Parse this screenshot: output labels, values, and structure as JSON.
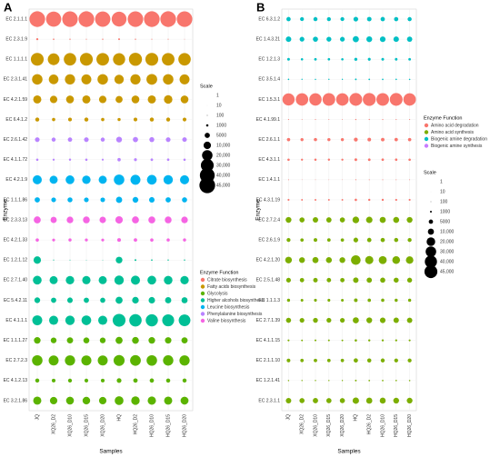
{
  "chart_data": [
    {
      "type": "dotplot",
      "panel": "A",
      "x_label": "Samples",
      "y_label": "Enzyme",
      "categories": [
        "JQ",
        "XQ26_D2",
        "XQ26_D10",
        "XQ26_D15",
        "XQ26_D20",
        "HQ",
        "HQ26_D2",
        "HQ26_D10",
        "HQ26_D15",
        "HQ26_D20"
      ],
      "legend_title": "Enzyme Function",
      "groups": [
        {
          "name": "Citrate biosynthesis",
          "color": "#F8766D"
        },
        {
          "name": "Fatty acids biosynthesis",
          "color": "#C99800"
        },
        {
          "name": "Glycolysis",
          "color": "#5BB300"
        },
        {
          "name": "Higher alcohols biosynthesis",
          "color": "#00BF96"
        },
        {
          "name": "Leucine biosynthesis",
          "color": "#00B4F0"
        },
        {
          "name": "Phenylalanine biosynthesis",
          "color": "#B983FF"
        },
        {
          "name": "Valine biosynthesis",
          "color": "#F564E3"
        }
      ],
      "size_title": "Scale",
      "size_ticks": [
        1,
        10,
        100,
        1000,
        5000,
        {
          "value": 10000,
          "label": "10,000"
        },
        {
          "value": 20000,
          "label": "20,000"
        },
        {
          "value": 30000,
          "label": "30,000"
        },
        {
          "value": 40000,
          "label": "40,000"
        },
        {
          "value": 45000,
          "label": "45,000"
        }
      ],
      "series": [
        {
          "name": "EC 2.1.1.1",
          "color": "#F8766D",
          "values": [
            45000,
            42000,
            44000,
            45000,
            43000,
            40000,
            44000,
            45000,
            45000,
            44000
          ]
        },
        {
          "name": "EC 2.3.1.9",
          "color": "#F8766D",
          "values": [
            800,
            400,
            300,
            200,
            300,
            600,
            300,
            200,
            200,
            100
          ]
        },
        {
          "name": "EC 1.1.1.1",
          "color": "#C99800",
          "values": [
            30000,
            25000,
            28000,
            30000,
            29000,
            27000,
            31000,
            30000,
            29000,
            28000
          ]
        },
        {
          "name": "EC 2.3.1.41",
          "color": "#C99800",
          "values": [
            20000,
            17000,
            19000,
            18000,
            20000,
            16000,
            19000,
            21000,
            20000,
            18000
          ]
        },
        {
          "name": "EC 4.2.1.59",
          "color": "#C99800",
          "values": [
            12000,
            10000,
            11000,
            12000,
            10000,
            9000,
            11000,
            12000,
            13000,
            11000
          ]
        },
        {
          "name": "EC 6.4.1.2",
          "color": "#C99800",
          "values": [
            3000,
            2000,
            2500,
            3000,
            2000,
            1800,
            2500,
            3000,
            2800,
            2600
          ]
        },
        {
          "name": "EC 2.6.1.42",
          "color": "#B983FF",
          "values": [
            4000,
            3000,
            3500,
            4000,
            3000,
            6000,
            5000,
            4500,
            4000,
            3800
          ]
        },
        {
          "name": "EC 4.1.1.72",
          "color": "#B983FF",
          "values": [
            1000,
            800,
            900,
            1000,
            700,
            2000,
            1500,
            1200,
            1100,
            1000
          ]
        },
        {
          "name": "EC 4.2.1.9",
          "color": "#00B4F0",
          "values": [
            15000,
            12000,
            14000,
            13000,
            12000,
            20000,
            18000,
            17000,
            16000,
            15000
          ]
        },
        {
          "name": "EC 1.1.1.86",
          "color": "#00B4F0",
          "values": [
            5000,
            4000,
            4500,
            4000,
            3800,
            7000,
            6000,
            5500,
            5000,
            4800
          ]
        },
        {
          "name": "EC 2.3.3.13",
          "color": "#F564E3",
          "values": [
            9000,
            7000,
            8000,
            8500,
            7500,
            10000,
            9000,
            8800,
            8500,
            8000
          ]
        },
        {
          "name": "EC 4.2.1.33",
          "color": "#F564E3",
          "values": [
            2000,
            1500,
            1800,
            1600,
            1500,
            2500,
            2200,
            2000,
            1900,
            1800
          ]
        },
        {
          "name": "EC 1.2.1.12",
          "color": "#00BF96",
          "values": [
            10000,
            200,
            150,
            100,
            100,
            8000,
            600,
            400,
            300,
            300
          ]
        },
        {
          "name": "EC 2.7.1.40",
          "color": "#00BF96",
          "values": [
            14000,
            12000,
            13000,
            12500,
            12000,
            16000,
            15000,
            14000,
            13500,
            13000
          ]
        },
        {
          "name": "EC 5.4.2.11",
          "color": "#00BF96",
          "values": [
            6000,
            5000,
            5500,
            5000,
            4800,
            9000,
            8000,
            7500,
            7000,
            6800
          ]
        },
        {
          "name": "EC 4.1.1.1",
          "color": "#00BF96",
          "values": [
            18000,
            15000,
            16000,
            17000,
            15000,
            30000,
            28000,
            27000,
            26000,
            25000
          ]
        },
        {
          "name": "EC 1.1.1.27",
          "color": "#5BB300",
          "values": [
            8000,
            6000,
            7000,
            6500,
            6000,
            9000,
            8500,
            8000,
            7500,
            7000
          ]
        },
        {
          "name": "EC 2.7.2.3",
          "color": "#5BB300",
          "values": [
            20000,
            18000,
            19000,
            18500,
            18000,
            22000,
            21000,
            20000,
            19500,
            19000
          ]
        },
        {
          "name": "EC 4.1.2.13",
          "color": "#5BB300",
          "values": [
            3000,
            2500,
            2800,
            2600,
            2500,
            4000,
            3500,
            3300,
            3100,
            3000
          ]
        },
        {
          "name": "EC 3.2.1.86",
          "color": "#5BB300",
          "values": [
            12000,
            10000,
            11000,
            10500,
            10000,
            14000,
            13000,
            12500,
            12000,
            11500
          ]
        }
      ]
    },
    {
      "type": "dotplot",
      "panel": "B",
      "x_label": "Samples",
      "y_label": "Enzyme",
      "categories": [
        "JQ",
        "XQ26_D2",
        "XQ26_D10",
        "XQ26_D15",
        "XQ26_D20",
        "HQ",
        "HQ26_D2",
        "HQ26_D10",
        "HQ26_D15",
        "HQ26_D20"
      ],
      "legend_title": "Enzyme Function",
      "groups": [
        {
          "name": "Amino acid degradation",
          "color": "#F8766D"
        },
        {
          "name": "Amino acid synthesis",
          "color": "#7CAE00"
        },
        {
          "name": "Biogenic amine degradation",
          "color": "#00BFC4"
        },
        {
          "name": "Biogenic amine synthesis",
          "color": "#C77CFF"
        }
      ],
      "size_title": "Scale",
      "size_ticks": [
        1,
        10,
        100,
        1000,
        5000,
        {
          "value": 10000,
          "label": "10,000"
        },
        {
          "value": 20000,
          "label": "20,000"
        },
        {
          "value": 30000,
          "label": "30,000"
        },
        {
          "value": 40000,
          "label": "40,000"
        },
        {
          "value": 45000,
          "label": "45,000"
        }
      ],
      "series": [
        {
          "name": "EC 6.3.1.2",
          "color": "#00BFC4",
          "values": [
            5000,
            4000,
            4500,
            4200,
            4000,
            6000,
            5500,
            5000,
            4800,
            4600
          ]
        },
        {
          "name": "EC 1.4.3.21",
          "color": "#00BFC4",
          "values": [
            8000,
            6000,
            7000,
            6500,
            6000,
            10000,
            9000,
            8500,
            8000,
            7500
          ]
        },
        {
          "name": "EC 1.2.1.3",
          "color": "#00BFC4",
          "values": [
            2000,
            1500,
            1800,
            1600,
            1500,
            2500,
            2200,
            2000,
            1900,
            1800
          ]
        },
        {
          "name": "EC 3.5.1.4",
          "color": "#00BFC4",
          "values": [
            600,
            400,
            500,
            450,
            400,
            800,
            700,
            650,
            600,
            550
          ]
        },
        {
          "name": "EC 1.5.3.1",
          "color": "#F8766D",
          "values": [
            40000,
            42000,
            41000,
            43000,
            42000,
            44000,
            45000,
            43000,
            44000,
            42000
          ]
        },
        {
          "name": "EC 4.1.99.1",
          "color": "#F8766D",
          "values": [
            300,
            200,
            250,
            220,
            200,
            400,
            350,
            320,
            300,
            280
          ]
        },
        {
          "name": "EC 2.6.1.1",
          "color": "#F8766D",
          "values": [
            3000,
            2500,
            2800,
            2600,
            2500,
            4000,
            3500,
            3300,
            3100,
            3000
          ]
        },
        {
          "name": "EC 4.3.1.1",
          "color": "#F8766D",
          "values": [
            1500,
            1200,
            1400,
            1300,
            1200,
            2000,
            1800,
            1700,
            1600,
            1500
          ]
        },
        {
          "name": "EC 1.4.1.1",
          "color": "#F8766D",
          "values": [
            200,
            100,
            150,
            120,
            100,
            300,
            250,
            220,
            200,
            180
          ]
        },
        {
          "name": "EC 4.3.1.19",
          "color": "#F8766D",
          "values": [
            1000,
            800,
            900,
            850,
            800,
            1500,
            1300,
            1200,
            1100,
            1000
          ]
        },
        {
          "name": "EC 2.7.2.4",
          "color": "#7CAE00",
          "values": [
            9000,
            7000,
            8000,
            7500,
            7000,
            12000,
            11000,
            10000,
            9500,
            9000
          ]
        },
        {
          "name": "EC 2.6.1.9",
          "color": "#7CAE00",
          "values": [
            4000,
            3000,
            3500,
            3200,
            3000,
            6000,
            5000,
            4800,
            4500,
            4200
          ]
        },
        {
          "name": "EC 4.2.1.20",
          "color": "#7CAE00",
          "values": [
            12000,
            9000,
            10000,
            9500,
            9000,
            25000,
            18000,
            17000,
            16000,
            15000
          ]
        },
        {
          "name": "EC 2.5.1.48",
          "color": "#7CAE00",
          "values": [
            6000,
            5000,
            5500,
            5200,
            5000,
            8000,
            7500,
            7000,
            6800,
            6500
          ]
        },
        {
          "name": "EC 1.1.1.3",
          "color": "#7CAE00",
          "values": [
            2500,
            2000,
            2200,
            2100,
            2000,
            3500,
            3000,
            2800,
            2700,
            2600
          ]
        },
        {
          "name": "EC 2.7.1.39",
          "color": "#7CAE00",
          "values": [
            7000,
            6000,
            6500,
            6200,
            6000,
            10000,
            9000,
            8500,
            8000,
            7800
          ]
        },
        {
          "name": "EC 4.1.1.15",
          "color": "#7CAE00",
          "values": [
            1000,
            800,
            900,
            850,
            800,
            1500,
            1300,
            1200,
            1100,
            1000
          ]
        },
        {
          "name": "EC 2.1.1.10",
          "color": "#7CAE00",
          "values": [
            3500,
            3000,
            3200,
            3100,
            3000,
            5000,
            4500,
            4300,
            4100,
            4000
          ]
        },
        {
          "name": "EC 1.2.1.41",
          "color": "#7CAE00",
          "values": [
            500,
            400,
            450,
            420,
            400,
            800,
            700,
            650,
            600,
            550
          ]
        },
        {
          "name": "EC 2.3.1.1",
          "color": "#7CAE00",
          "values": [
            8000,
            7000,
            7500,
            7200,
            7000,
            11000,
            10000,
            9500,
            9000,
            8800
          ]
        }
      ]
    }
  ]
}
